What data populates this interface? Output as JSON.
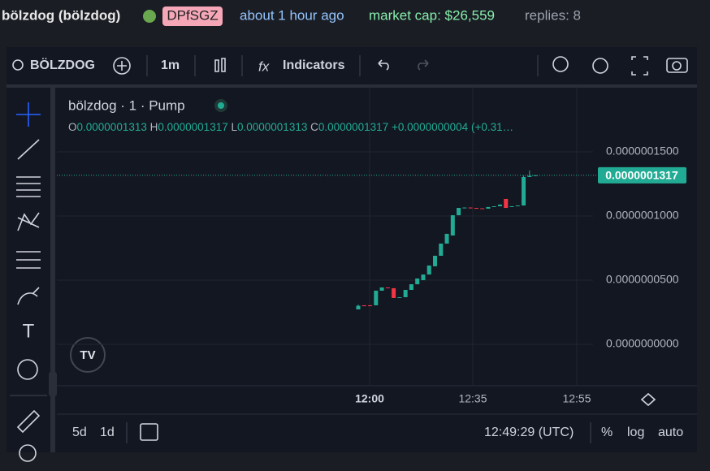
{
  "header": {
    "name": "bölzdog (bölzdog)",
    "ticker": "DPfSGZ",
    "time": "about 1 hour ago",
    "market_cap": "market cap: $26,559",
    "replies": "replies: 8"
  },
  "toolbar": {
    "symbol": "BÖLZDOG",
    "interval": "1m",
    "indicators": "Indicators"
  },
  "chart": {
    "type": "candlestick",
    "title": "bölzdog · 1 · Pump",
    "legend": {
      "o_label": "O",
      "o": "0.0000001313",
      "h_label": "H",
      "h": "0.0000001317",
      "l_label": "L",
      "l": "0.0000001313",
      "c_label": "C",
      "c": "0.0000001317",
      "change": "+0.0000000004 (+0.31…"
    },
    "up_color": "#22ab94",
    "down_color": "#f23645",
    "ylim": [
      -3.23e-08,
      2e-07
    ],
    "yticks": [
      {
        "value": 1.5e-07,
        "label": "0.0000001500"
      },
      {
        "value": 1e-07,
        "label": "0.0000001000"
      },
      {
        "value": 5e-08,
        "label": "0.0000000500"
      },
      {
        "value": 0,
        "label": "0.0000000000"
      }
    ],
    "last_price": {
      "value": 1.317e-07,
      "label": "0.0000001317"
    },
    "open": [
      2.72e-08,
      3.04e-08,
      3.04e-08,
      3.04e-08,
      4.18e-08,
      4.43e-08,
      4.37e-08,
      3.61e-08,
      3.67e-08,
      4.24e-08,
      4.68e-08,
      5e-08,
      5.44e-08,
      6.08e-08,
      6.9e-08,
      7.85e-08,
      8.48e-08,
      1.006e-07,
      1.063e-07,
      1.066e-07,
      1.063e-07,
      1.06e-07,
      1.057e-07,
      1.07e-07,
      1.076e-07,
      1.133e-07,
      1.07e-07,
      1.076e-07,
      1.082e-07,
      1.304e-07,
      1.313e-07
    ],
    "high": [
      3.1e-08,
      3.04e-08,
      3.04e-08,
      4.18e-08,
      4.43e-08,
      4.43e-08,
      4.37e-08,
      3.67e-08,
      4.24e-08,
      4.68e-08,
      5.13e-08,
      5.44e-08,
      6.14e-08,
      6.9e-08,
      7.85e-08,
      8.61e-08,
      1.006e-07,
      1.063e-07,
      1.066e-07,
      1.066e-07,
      1.063e-07,
      1.06e-07,
      1.07e-07,
      1.076e-07,
      1.089e-07,
      1.133e-07,
      1.076e-07,
      1.082e-07,
      1.317e-07,
      1.355e-07,
      1.317e-07
    ],
    "low": [
      2.72e-08,
      2.97e-08,
      2.97e-08,
      3.04e-08,
      4.18e-08,
      4.37e-08,
      3.61e-08,
      3.61e-08,
      3.67e-08,
      4.24e-08,
      4.68e-08,
      5e-08,
      5.44e-08,
      6.08e-08,
      6.9e-08,
      7.85e-08,
      8.48e-08,
      1.006e-07,
      1.063e-07,
      1.063e-07,
      1.06e-07,
      1.057e-07,
      1.057e-07,
      1.07e-07,
      1.076e-07,
      1.063e-07,
      1.07e-07,
      1.076e-07,
      1.082e-07,
      1.304e-07,
      1.313e-07
    ],
    "close": [
      3e-08,
      2.97e-08,
      2.97e-08,
      4.18e-08,
      4.43e-08,
      4.37e-08,
      3.61e-08,
      3.67e-08,
      4.24e-08,
      4.68e-08,
      5.13e-08,
      5.44e-08,
      6.14e-08,
      6.9e-08,
      7.85e-08,
      8.61e-08,
      1.006e-07,
      1.063e-07,
      1.066e-07,
      1.063e-07,
      1.06e-07,
      1.057e-07,
      1.07e-07,
      1.076e-07,
      1.089e-07,
      1.063e-07,
      1.076e-07,
      1.082e-07,
      1.304e-07,
      1.313e-07,
      1.317e-07
    ],
    "time_labels": [
      "12:00",
      "12:35",
      "12:55"
    ]
  },
  "footer": {
    "range_5d": "5d",
    "range_1d": "1d",
    "clock": "12:49:29 (UTC)",
    "percent": "%",
    "log": "log",
    "auto": "auto"
  }
}
